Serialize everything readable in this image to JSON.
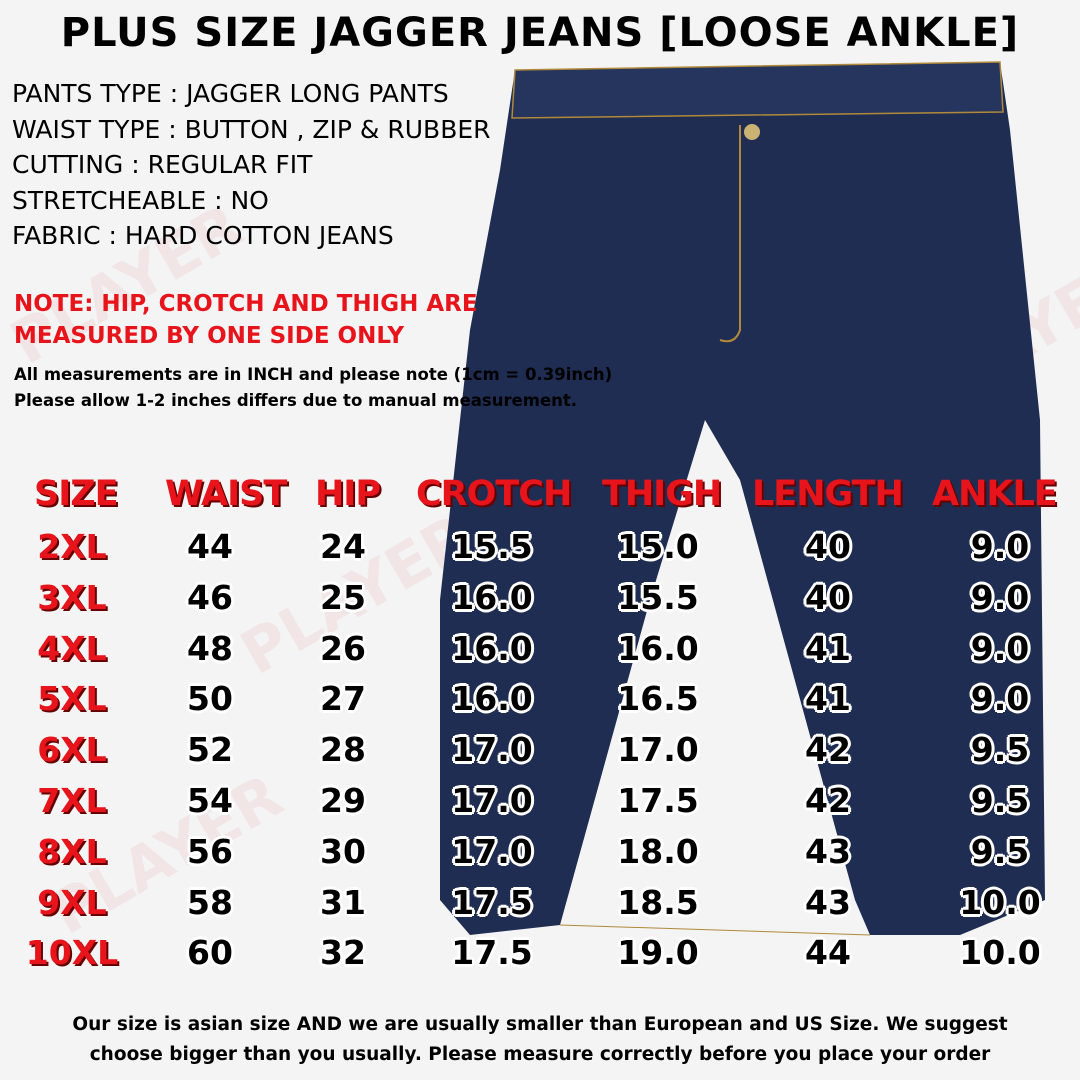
{
  "title": "PLUS SIZE JAGGER JEANS [LOOSE ANKLE]",
  "specs": [
    "PANTS TYPE : JAGGER LONG PANTS",
    "WAIST TYPE : BUTTON , ZIP & RUBBER",
    "CUTTING : REGULAR FIT",
    "STRETCHEABLE : NO",
    "FABRIC : HARD COTTON JEANS"
  ],
  "note": [
    "NOTE: HIP, CROTCH AND THIGH ARE",
    "MEASURED BY ONE SIDE ONLY"
  ],
  "measurement_notes": [
    "All measurements are in INCH and please note (1cm = 0.39inch)",
    "Please allow 1-2 inches differs due to manual measurement."
  ],
  "watermark": "PLAYER STAY GRANDE",
  "table": {
    "headers": [
      "SIZE",
      "WAIST",
      "HIP",
      "CROTCH",
      "THIGH",
      "LENGTH",
      "ANKLE"
    ],
    "rows": [
      [
        "2XL",
        "44",
        "24",
        "15.5",
        "15.0",
        "40",
        "9.0"
      ],
      [
        "3XL",
        "46",
        "25",
        "16.0",
        "15.5",
        "40",
        "9.0"
      ],
      [
        "4XL",
        "48",
        "26",
        "16.0",
        "16.0",
        "41",
        "9.0"
      ],
      [
        "5XL",
        "50",
        "27",
        "16.0",
        "16.5",
        "41",
        "9.0"
      ],
      [
        "6XL",
        "52",
        "28",
        "17.0",
        "17.0",
        "42",
        "9.5"
      ],
      [
        "7XL",
        "54",
        "29",
        "17.0",
        "17.5",
        "42",
        "9.5"
      ],
      [
        "8XL",
        "56",
        "30",
        "17.0",
        "18.0",
        "43",
        "9.5"
      ],
      [
        "9XL",
        "58",
        "31",
        "17.5",
        "18.5",
        "43",
        "10.0"
      ],
      [
        "10XL",
        "60",
        "32",
        "17.5",
        "19.0",
        "44",
        "10.0"
      ]
    ]
  },
  "footer": [
    "Our size is asian size AND we are usually smaller than European and US Size. We suggest",
    "choose bigger than you usually. Please measure correctly before you place your order"
  ],
  "colors": {
    "accent": "#e8141b",
    "denim": "#1f2d52"
  }
}
